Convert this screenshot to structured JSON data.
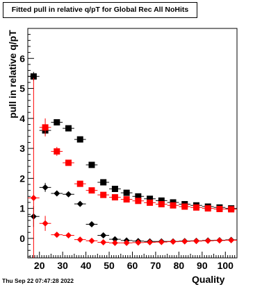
{
  "footer_date": "Thu Sep 22 07:47:28 2022",
  "chart_data": {
    "type": "scatter",
    "title": "Fitted pull in relative q/pT for Global Rec All NoHits",
    "xlabel": "Quality",
    "ylabel": "pull in relative q/pT",
    "xlim": [
      15,
      105
    ],
    "ylim": [
      -0.65,
      7.0
    ],
    "x_ticks": [
      20,
      30,
      40,
      50,
      60,
      70,
      80,
      90,
      100
    ],
    "y_ticks": [
      0,
      1,
      2,
      3,
      4,
      5,
      6
    ],
    "grid": false,
    "series": [
      {
        "color": "#000000",
        "marker": "square",
        "points": [
          {
            "x": 17.5,
            "y": 5.4,
            "yerr": 0.15
          },
          {
            "x": 22.5,
            "y": 3.6,
            "yerr": 0.15
          },
          {
            "x": 27.5,
            "y": 3.87
          },
          {
            "x": 32.5,
            "y": 3.67
          },
          {
            "x": 37.5,
            "y": 3.3
          },
          {
            "x": 42.5,
            "y": 2.45
          },
          {
            "x": 47.5,
            "y": 1.87
          },
          {
            "x": 52.5,
            "y": 1.65
          },
          {
            "x": 57.5,
            "y": 1.52
          },
          {
            "x": 62.5,
            "y": 1.4
          },
          {
            "x": 67.5,
            "y": 1.32
          },
          {
            "x": 72.5,
            "y": 1.26
          },
          {
            "x": 77.5,
            "y": 1.2
          },
          {
            "x": 82.5,
            "y": 1.14
          },
          {
            "x": 87.5,
            "y": 1.1
          },
          {
            "x": 92.5,
            "y": 1.06
          },
          {
            "x": 97.5,
            "y": 1.03
          },
          {
            "x": 102.5,
            "y": 1.0
          }
        ]
      },
      {
        "color": "#ff0000",
        "marker": "square",
        "points": [
          {
            "x": 22.5,
            "y": 3.7,
            "yerr": 0.3
          },
          {
            "x": 27.5,
            "y": 2.9,
            "yerr": 0.15
          },
          {
            "x": 32.5,
            "y": 2.52
          },
          {
            "x": 37.5,
            "y": 1.82
          },
          {
            "x": 42.5,
            "y": 1.6
          },
          {
            "x": 47.5,
            "y": 1.45
          },
          {
            "x": 52.5,
            "y": 1.37
          },
          {
            "x": 57.5,
            "y": 1.3
          },
          {
            "x": 62.5,
            "y": 1.25
          },
          {
            "x": 67.5,
            "y": 1.19
          },
          {
            "x": 72.5,
            "y": 1.14
          },
          {
            "x": 77.5,
            "y": 1.1
          },
          {
            "x": 82.5,
            "y": 1.06
          },
          {
            "x": 87.5,
            "y": 1.03
          },
          {
            "x": 92.5,
            "y": 1.0
          },
          {
            "x": 97.5,
            "y": 0.98
          },
          {
            "x": 102.5,
            "y": 0.97
          }
        ]
      },
      {
        "color": "#000000",
        "marker": "diamond",
        "points": [
          {
            "x": 17.5,
            "y": 0.73,
            "yerr": 0.35
          },
          {
            "x": 22.5,
            "y": 1.7,
            "yerr": 0.15
          },
          {
            "x": 27.5,
            "y": 1.5
          },
          {
            "x": 32.5,
            "y": 1.47
          },
          {
            "x": 37.5,
            "y": 1.15
          },
          {
            "x": 42.5,
            "y": 0.47
          },
          {
            "x": 47.5,
            "y": 0.1
          },
          {
            "x": 52.5,
            "y": -0.03
          },
          {
            "x": 57.5,
            "y": -0.07
          },
          {
            "x": 62.5,
            "y": -0.09
          },
          {
            "x": 67.5,
            "y": -0.1
          },
          {
            "x": 72.5,
            "y": -0.1
          },
          {
            "x": 77.5,
            "y": -0.1
          },
          {
            "x": 82.5,
            "y": -0.09
          },
          {
            "x": 87.5,
            "y": -0.08
          },
          {
            "x": 92.5,
            "y": -0.07
          },
          {
            "x": 97.5,
            "y": -0.06
          },
          {
            "x": 102.5,
            "y": -0.05
          }
        ]
      },
      {
        "color": "#ff0000",
        "marker": "diamond",
        "points": [
          {
            "x": 17.5,
            "y": 1.35,
            "yerr": 4.0
          },
          {
            "x": 22.5,
            "y": 0.5,
            "yerr": 0.25
          },
          {
            "x": 27.5,
            "y": 0.12
          },
          {
            "x": 32.5,
            "y": 0.1
          },
          {
            "x": 37.5,
            "y": -0.04
          },
          {
            "x": 42.5,
            "y": -0.08
          },
          {
            "x": 47.5,
            "y": -0.13
          },
          {
            "x": 52.5,
            "y": -0.15
          },
          {
            "x": 57.5,
            "y": -0.15
          },
          {
            "x": 62.5,
            "y": -0.14
          },
          {
            "x": 67.5,
            "y": -0.13
          },
          {
            "x": 72.5,
            "y": -0.12
          },
          {
            "x": 77.5,
            "y": -0.11
          },
          {
            "x": 82.5,
            "y": -0.1
          },
          {
            "x": 87.5,
            "y": -0.09
          },
          {
            "x": 92.5,
            "y": -0.08
          },
          {
            "x": 97.5,
            "y": -0.07
          },
          {
            "x": 102.5,
            "y": -0.06
          }
        ]
      }
    ]
  }
}
